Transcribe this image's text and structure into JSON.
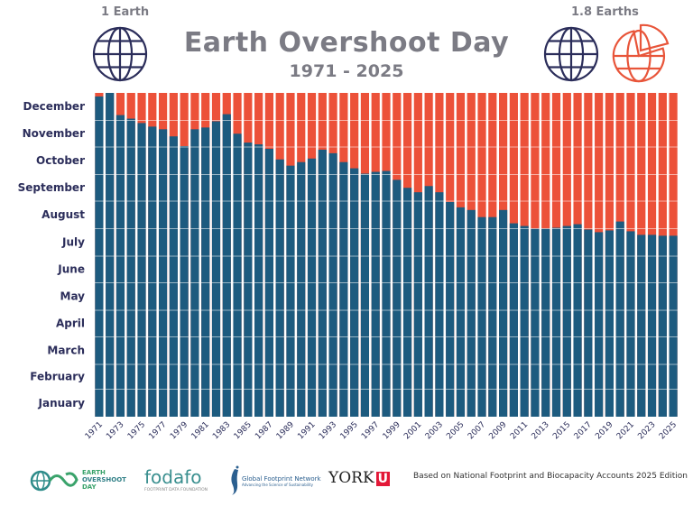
{
  "header": {
    "title": "Earth Overshoot Day",
    "subtitle": "1971 - 2025",
    "left_globe_label": "1 Earth",
    "right_globe_label": "1.8 Earths"
  },
  "colors": {
    "before_overshoot": "#1d5b7f",
    "after_overshoot": "#ec5139",
    "title": "#7b7b84",
    "globe": "#2b2d5a",
    "globe_partial": "#e8553a"
  },
  "chart_data": {
    "type": "bar",
    "title": "Earth Overshoot Day",
    "subtitle": "1971 - 2025",
    "y_axis": {
      "type": "date-of-year",
      "ticks": [
        "January",
        "February",
        "March",
        "April",
        "May",
        "June",
        "July",
        "August",
        "September",
        "October",
        "November",
        "December"
      ],
      "grid": true
    },
    "x_tick_labels": [
      "1971",
      "1973",
      "1975",
      "1977",
      "1979",
      "1981",
      "1983",
      "1985",
      "1987",
      "1989",
      "1991",
      "1993",
      "1995",
      "1997",
      "1999",
      "2001",
      "2003",
      "2005",
      "2007",
      "2009",
      "2011",
      "2013",
      "2015",
      "2017",
      "2019",
      "2021",
      "2023",
      "2025"
    ],
    "years": [
      1971,
      1972,
      1973,
      1974,
      1975,
      1976,
      1977,
      1978,
      1979,
      1980,
      1981,
      1982,
      1983,
      1984,
      1985,
      1986,
      1987,
      1988,
      1989,
      1990,
      1991,
      1992,
      1993,
      1994,
      1995,
      1996,
      1997,
      1998,
      1999,
      2000,
      2001,
      2002,
      2003,
      2004,
      2005,
      2006,
      2007,
      2008,
      2009,
      2010,
      2011,
      2012,
      2013,
      2014,
      2015,
      2016,
      2017,
      2018,
      2019,
      2020,
      2021,
      2022,
      2023,
      2024,
      2025
    ],
    "overshoot_dates": [
      "12-27",
      "12-31",
      "12-06",
      "12-02",
      "11-27",
      "11-23",
      "11-20",
      "11-12",
      "11-01",
      "11-20",
      "11-22",
      "11-29",
      "12-07",
      "11-15",
      "11-05",
      "11-03",
      "10-29",
      "10-17",
      "10-10",
      "10-14",
      "10-18",
      "10-28",
      "10-24",
      "10-14",
      "10-07",
      "10-01",
      "10-03",
      "10-04",
      "09-24",
      "09-15",
      "09-10",
      "09-17",
      "09-10",
      "08-30",
      "08-24",
      "08-21",
      "08-13",
      "08-13",
      "08-21",
      "08-06",
      "08-03",
      "07-31",
      "07-31",
      "08-01",
      "08-03",
      "08-05",
      "07-30",
      "07-27",
      "07-29",
      "08-08",
      "07-28",
      "07-24",
      "07-24",
      "07-23",
      "07-23"
    ],
    "series": [
      {
        "name": "",
        "color": "#1d5b7f"
      },
      {
        "name": "",
        "color": "#ec5139"
      }
    ]
  },
  "footer": {
    "logos": [
      "EARTH OVERSHOOT DAY",
      "FODAFO FOOTPRINT DATA FOUNDATION",
      "Global Footprint Network Advancing the Science of Sustainability",
      "YORK U"
    ],
    "eod_logo": [
      "EARTH",
      "OVERSHOOT",
      "DAY"
    ],
    "fodafo": "fodafo",
    "fodafo_sub": "FOOTPRINT DATA FOUNDATION",
    "gfn": "Global Footprint Network",
    "gfn_sub": "Advancing the Science of Sustainability",
    "york": "YORK",
    "york_u": "U",
    "note": "Based on National Footprint and Biocapacity Accounts 2025 Edition"
  }
}
